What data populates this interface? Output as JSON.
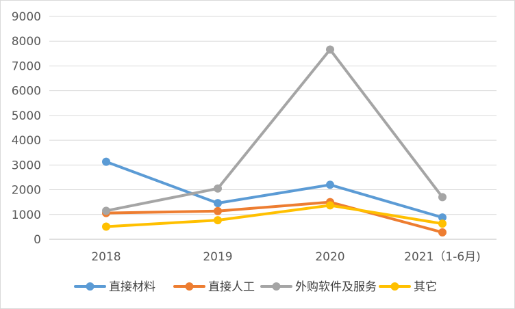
{
  "chart_data": {
    "type": "line",
    "title": "",
    "xlabel": "",
    "ylabel": "",
    "categories": [
      "2018",
      "2019",
      "2020",
      "2021（1-6月)"
    ],
    "ylim": [
      0,
      9000
    ],
    "yticks": [
      "0",
      "1000",
      "2000",
      "3000",
      "4000",
      "5000",
      "6000",
      "7000",
      "8000",
      "9000"
    ],
    "grid": true,
    "legend_position": "bottom",
    "series": [
      {
        "name": "直接材料",
        "color": "#5b9bd5",
        "values": [
          3130,
          1460,
          2200,
          880
        ]
      },
      {
        "name": "直接人工",
        "color": "#ed7d31",
        "values": [
          1060,
          1140,
          1500,
          280
        ]
      },
      {
        "name": "外购软件及服务",
        "color": "#a5a5a5",
        "values": [
          1150,
          2050,
          7660,
          1700
        ]
      },
      {
        "name": "其它",
        "color": "#ffc000",
        "values": [
          510,
          770,
          1370,
          630
        ]
      }
    ]
  }
}
